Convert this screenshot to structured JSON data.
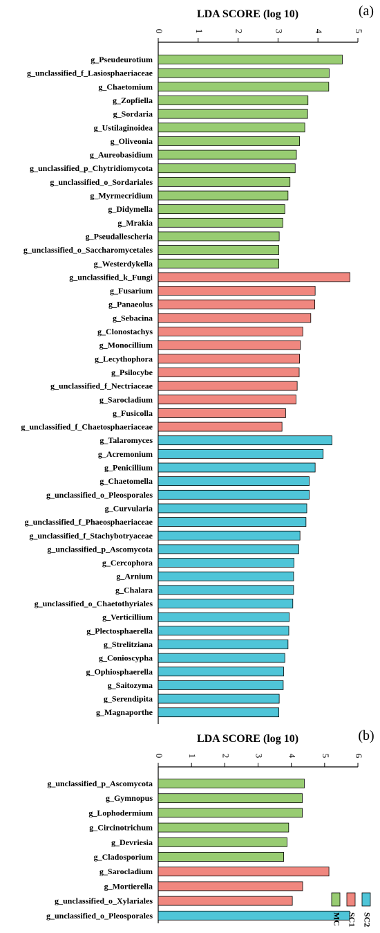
{
  "chart_data": [
    {
      "type": "bar",
      "orientation": "horizontal",
      "panel_label": "(a)",
      "xlabel": "LDA SCORE (log 10)",
      "xlim": [
        0,
        5
      ],
      "ticks": [
        "0",
        "1",
        "2",
        "3",
        "4",
        "5"
      ],
      "grid": false,
      "categories": [
        "g_Pseudeurotium",
        "g_unclassified_f_Lasiosphaeriaceae",
        "g_Chaetomium",
        "g_Zopfiella",
        "g_Sordaria",
        "g_Ustilaginoidea",
        "g_Oliveonia",
        "g_Aureobasidium",
        "g_unclassified_p_Chytridiomycota",
        "g_unclassified_o_Sordariales",
        "g_Myrmecridium",
        "g_Didymella",
        "g_Mrakia",
        "g_Pseudallescheria",
        "g_unclassified_o_Saccharomycetales",
        "g_Westerdykella",
        "g_unclassified_k_Fungi",
        "g_Fusarium",
        "g_Panaeolus",
        "g_Sebacina",
        "g_Clonostachys",
        "g_Monocillium",
        "g_Lecythophora",
        "g_Psilocybe",
        "g_unclassified_f_Nectriaceae",
        "g_Sarocladium",
        "g_Fusicolla",
        "g_unclassified_f_Chaetosphaeriaceae",
        "g_Talaromyces",
        "g_Acremonium",
        "g_Penicillium",
        "g_Chaetomella",
        "g_unclassified_o_Pleosporales",
        "g_Curvularia",
        "g_unclassified_f_Phaeosphaeriaceae",
        "g_unclassified_f_Stachybotryaceae",
        "g_unclassified_p_Ascomycota",
        "g_Cercophora",
        "g_Arnium",
        "g_Chalara",
        "g_unclassified_o_Chaetothyriales",
        "g_Verticillium",
        "g_Plectosphaerella",
        "g_Strelitziana",
        "g_Conioscypha",
        "g_Ophiosphaerella",
        "g_Saitozyma",
        "g_Serendipita",
        "g_Magnaporthe"
      ],
      "values": [
        4.61,
        4.28,
        4.27,
        3.75,
        3.74,
        3.67,
        3.54,
        3.46,
        3.43,
        3.3,
        3.25,
        3.17,
        3.12,
        3.03,
        3.02,
        3.02,
        4.8,
        3.93,
        3.92,
        3.82,
        3.62,
        3.56,
        3.54,
        3.53,
        3.48,
        3.45,
        3.19,
        3.1,
        4.35,
        4.13,
        3.93,
        3.78,
        3.78,
        3.72,
        3.7,
        3.55,
        3.52,
        3.4,
        3.39,
        3.39,
        3.37,
        3.28,
        3.27,
        3.25,
        3.17,
        3.14,
        3.13,
        3.03,
        3.02
      ],
      "groups": [
        "MC",
        "MC",
        "MC",
        "MC",
        "MC",
        "MC",
        "MC",
        "MC",
        "MC",
        "MC",
        "MC",
        "MC",
        "MC",
        "MC",
        "MC",
        "MC",
        "SC1",
        "SC1",
        "SC1",
        "SC1",
        "SC1",
        "SC1",
        "SC1",
        "SC1",
        "SC1",
        "SC1",
        "SC1",
        "SC1",
        "SC2",
        "SC2",
        "SC2",
        "SC2",
        "SC2",
        "SC2",
        "SC2",
        "SC2",
        "SC2",
        "SC2",
        "SC2",
        "SC2",
        "SC2",
        "SC2",
        "SC2",
        "SC2",
        "SC2",
        "SC2",
        "SC2",
        "SC2",
        "SC2"
      ]
    },
    {
      "type": "bar",
      "orientation": "horizontal",
      "panel_label": "(b)",
      "xlabel": "LDA SCORE (log 10)",
      "xlim": [
        0,
        6
      ],
      "ticks": [
        "0",
        "1",
        "2",
        "3",
        "4",
        "5",
        "6"
      ],
      "grid": false,
      "categories": [
        "g_unclassified_p_Ascomycota",
        "g_Gymnopus",
        "g_Lophodermium",
        "g_Circinotrichum",
        "g_Devriesia",
        "g_Cladosporium",
        "g_Sarocladium",
        "g_Mortierella",
        "g_unclassified_o_Xylariales",
        "g_unclassified_o_Pleosporales"
      ],
      "values": [
        4.39,
        4.33,
        4.33,
        3.92,
        3.87,
        3.77,
        5.13,
        4.34,
        4.03,
        5.75
      ],
      "groups": [
        "MC",
        "MC",
        "MC",
        "MC",
        "MC",
        "MC",
        "SC1",
        "SC1",
        "SC1",
        "SC2"
      ],
      "legend": {
        "placement": "bottom-right",
        "entries": [
          {
            "name": "MC",
            "color": "#98cc72"
          },
          {
            "name": "SC1",
            "color": "#f0877f"
          },
          {
            "name": "SC2",
            "color": "#4fc5d8"
          }
        ]
      }
    }
  ],
  "group_colors": {
    "MC": "#98cc72",
    "SC1": "#f0877f",
    "SC2": "#4fc5d8"
  }
}
